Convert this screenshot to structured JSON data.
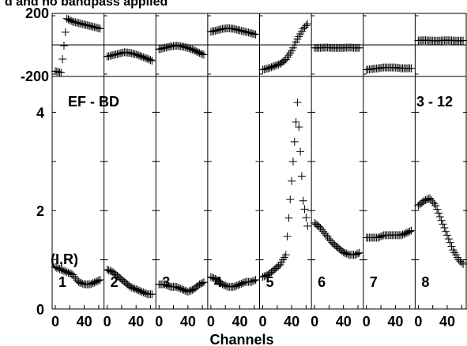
{
  "chart_data": {
    "type": "scatter",
    "title": "d and no bandpass applied",
    "xlabel": "Channels",
    "baseline_label": "EF - BD",
    "scan_label": "3 - 12",
    "unit_label": "(I,R)",
    "panel_labels": [
      "1",
      "2",
      "3",
      "4",
      "5",
      "6",
      "7",
      "8"
    ],
    "phase_panel": {
      "ylim": [
        -200,
        200
      ],
      "ytick_labels": [
        "200",
        "-200"
      ]
    },
    "amplitude_panel": {
      "ylim": [
        0,
        4.6
      ],
      "ytick_labels": [
        "0",
        "2",
        "4"
      ]
    },
    "x_range": [
      0,
      63
    ],
    "xtick_labels": [
      "0",
      "40"
    ],
    "marker_color": "#000000",
    "phase_series": [
      {
        "name": "1",
        "x": [
          0,
          8,
          16,
          24,
          32,
          40,
          48,
          56,
          63
        ],
        "y": [
          -180,
          -190,
          180,
          160,
          150,
          140,
          130,
          120,
          110
        ]
      },
      {
        "name": "2",
        "x": [
          0,
          8,
          16,
          24,
          32,
          40,
          48,
          56,
          63
        ],
        "y": [
          -80,
          -70,
          -60,
          -50,
          -55,
          -65,
          -80,
          -95,
          -110
        ]
      },
      {
        "name": "3",
        "x": [
          0,
          8,
          16,
          24,
          32,
          40,
          48,
          56,
          63
        ],
        "y": [
          -30,
          -20,
          -10,
          -5,
          -10,
          -20,
          -35,
          -55,
          -70
        ]
      },
      {
        "name": "4",
        "x": [
          0,
          8,
          16,
          24,
          32,
          40,
          48,
          56,
          63
        ],
        "y": [
          90,
          100,
          110,
          115,
          110,
          100,
          90,
          80,
          70
        ]
      },
      {
        "name": "5",
        "x": [
          0,
          8,
          16,
          24,
          32,
          40,
          48,
          56,
          63
        ],
        "y": [
          -170,
          -160,
          -145,
          -130,
          -100,
          -40,
          40,
          110,
          150
        ]
      },
      {
        "name": "6",
        "x": [
          0,
          8,
          16,
          24,
          32,
          40,
          48,
          56,
          63
        ],
        "y": [
          -20,
          -20,
          -18,
          -20,
          -20,
          -20,
          -18,
          -20,
          -20
        ]
      },
      {
        "name": "7",
        "x": [
          0,
          8,
          16,
          24,
          32,
          40,
          48,
          56,
          63
        ],
        "y": [
          -170,
          -165,
          -160,
          -155,
          -155,
          -155,
          -160,
          -160,
          -160
        ]
      },
      {
        "name": "8",
        "x": [
          0,
          8,
          16,
          24,
          32,
          40,
          48,
          56,
          63
        ],
        "y": [
          30,
          32,
          30,
          28,
          30,
          32,
          30,
          28,
          30
        ]
      }
    ],
    "amplitude_series": [
      {
        "name": "1",
        "x": [
          0,
          8,
          16,
          24,
          32,
          40,
          48,
          56,
          63
        ],
        "y": [
          0.85,
          0.8,
          0.75,
          0.7,
          0.55,
          0.5,
          0.5,
          0.55,
          0.6
        ]
      },
      {
        "name": "2",
        "x": [
          0,
          8,
          16,
          24,
          32,
          40,
          48,
          56,
          63
        ],
        "y": [
          0.8,
          0.75,
          0.65,
          0.55,
          0.45,
          0.4,
          0.35,
          0.3,
          0.3
        ]
      },
      {
        "name": "3",
        "x": [
          0,
          8,
          16,
          24,
          32,
          40,
          48,
          56,
          63
        ],
        "y": [
          0.5,
          0.5,
          0.45,
          0.45,
          0.4,
          0.35,
          0.4,
          0.5,
          0.55
        ]
      },
      {
        "name": "4",
        "x": [
          0,
          8,
          16,
          24,
          32,
          40,
          48,
          56,
          63
        ],
        "y": [
          0.65,
          0.6,
          0.5,
          0.45,
          0.45,
          0.5,
          0.55,
          0.55,
          0.6
        ]
      },
      {
        "name": "5",
        "x": [
          0,
          8,
          16,
          24,
          32,
          40,
          48,
          56,
          63
        ],
        "y": [
          0.65,
          0.7,
          0.8,
          0.9,
          1.1,
          2.6,
          4.2,
          2.2,
          1.6
        ]
      },
      {
        "name": "6",
        "x": [
          0,
          8,
          16,
          24,
          32,
          40,
          48,
          56,
          63
        ],
        "y": [
          1.75,
          1.65,
          1.5,
          1.35,
          1.25,
          1.15,
          1.1,
          1.1,
          1.15
        ]
      },
      {
        "name": "7",
        "x": [
          0,
          8,
          16,
          24,
          32,
          40,
          48,
          56,
          63
        ],
        "y": [
          1.45,
          1.45,
          1.45,
          1.5,
          1.5,
          1.5,
          1.5,
          1.55,
          1.6
        ]
      },
      {
        "name": "8",
        "x": [
          0,
          8,
          16,
          24,
          32,
          40,
          48,
          56,
          63
        ],
        "y": [
          2.1,
          2.2,
          2.25,
          2.1,
          1.8,
          1.5,
          1.2,
          1.0,
          0.9
        ]
      }
    ]
  }
}
